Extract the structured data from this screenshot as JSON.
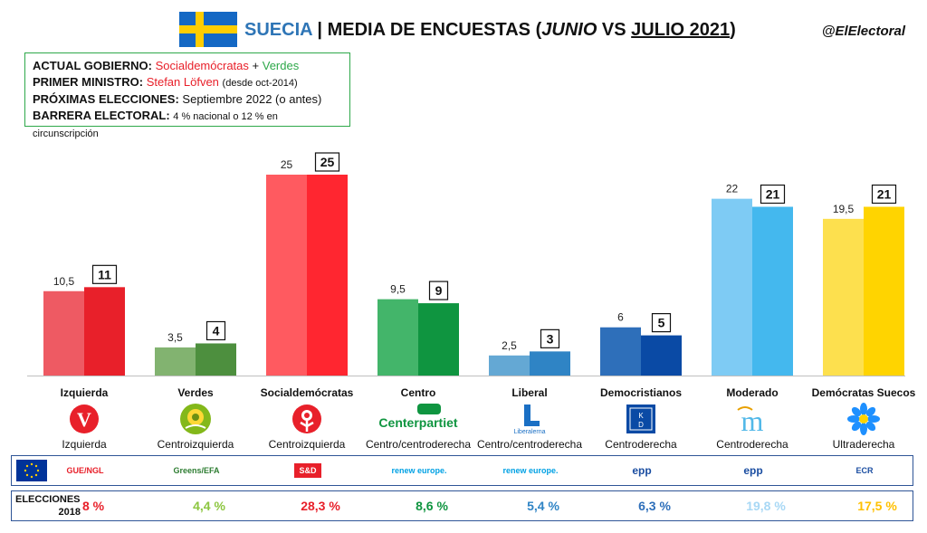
{
  "header": {
    "country": "SUECIA",
    "separator": "|",
    "title_prefix": "MEDIA DE ENCUESTAS (",
    "june": "JUNIO",
    "vs": " VS ",
    "july": "JULIO 2021",
    "title_suffix": ")",
    "handle": "@ElElectoral"
  },
  "info": {
    "gov_label": "ACTUAL GOBIERNO:",
    "gov_party1": "Socialdemócratas",
    "gov_plus": "+",
    "gov_party2": "Verdes",
    "pm_label": "PRIMER MINISTRO:",
    "pm_name": "Stefan Löfven",
    "pm_since": "(desde oct-2014)",
    "elections_label": "PRÓXIMAS ELECCIONES:",
    "elections_value": "Septiembre 2022 (o antes)",
    "threshold_label": "BARRERA ELECTORAL:",
    "threshold_value": "4 % nacional o 12 % en circunscripción"
  },
  "chart_data": {
    "type": "bar",
    "series_names": [
      "junio",
      "julio"
    ],
    "categories": [
      "Izquierda",
      "Verdes",
      "Socialdemócratas",
      "Centro",
      "Liberal",
      "Democristianos",
      "Moderado",
      "Demócratas Suecos"
    ],
    "june": [
      10.5,
      3.5,
      25,
      9.5,
      2.5,
      6,
      22,
      19.5
    ],
    "july": [
      11,
      4,
      25,
      9,
      3,
      5,
      21,
      21
    ],
    "june_labels": [
      "10,5",
      "3,5",
      "25",
      "9,5",
      "2,5",
      "6",
      "22",
      "19,5"
    ],
    "july_labels": [
      "11",
      "4",
      "25",
      "9",
      "3",
      "5",
      "21",
      "21"
    ],
    "ylim": [
      0,
      25
    ],
    "colors_june": [
      "#ee5a63",
      "#82b370",
      "#ff5a60",
      "#43b56a",
      "#64a8d4",
      "#2e6fba",
      "#7ecbf4",
      "#fde04e"
    ],
    "colors_july": [
      "#e8202a",
      "#4d8f3e",
      "#ff2630",
      "#0f9540",
      "#2f84c5",
      "#0a4aa5",
      "#44b8ee",
      "#ffd400"
    ],
    "grid": false,
    "legend": "none"
  },
  "parties": [
    {
      "name": "Izquierda",
      "ideology": "Izquierda",
      "logo": "V",
      "logo_color": "#e8202a"
    },
    {
      "name": "Verdes",
      "ideology": "Centroizquierda",
      "logo": "sunflower",
      "logo_color": "#83b81a"
    },
    {
      "name": "Socialdemócratas",
      "ideology": "Centroizquierda",
      "logo": "rose",
      "logo_color": "#e8202a"
    },
    {
      "name": "Centro",
      "ideology": "Centro/centroderecha",
      "logo": "Centerpartiet",
      "logo_color": "#0f9540"
    },
    {
      "name": "Liberal",
      "ideology": "Centro/centroderecha",
      "logo": "L",
      "logo_color": "#1a6fc4"
    },
    {
      "name": "Democristianos",
      "ideology": "Centroderecha",
      "logo": "KD",
      "logo_color": "#0a4aa5"
    },
    {
      "name": "Moderado",
      "ideology": "Centroderecha",
      "logo": "m",
      "logo_color": "#52b8e8"
    },
    {
      "name": "Demócratas Suecos",
      "ideology": "Ultraderecha",
      "logo": "flower",
      "logo_color": "#1e90ff"
    }
  ],
  "eu_groups": [
    "GUE/NGL",
    "Greens/EFA",
    "S&D",
    "renew europe.",
    "renew europe.",
    "epp",
    "epp",
    "ECR"
  ],
  "results": {
    "label_line1": "ELECCIONES",
    "label_line2": "2018",
    "values": [
      "8 %",
      "4,4 %",
      "28,3 %",
      "8,6 %",
      "5,4 %",
      "6,3 %",
      "19,8 %",
      "17,5 %"
    ],
    "colors": [
      "#e8202a",
      "#8cc63f",
      "#e8202a",
      "#0f9540",
      "#2f84c5",
      "#2e6fba",
      "#a8d8f5",
      "#ffc000"
    ]
  }
}
